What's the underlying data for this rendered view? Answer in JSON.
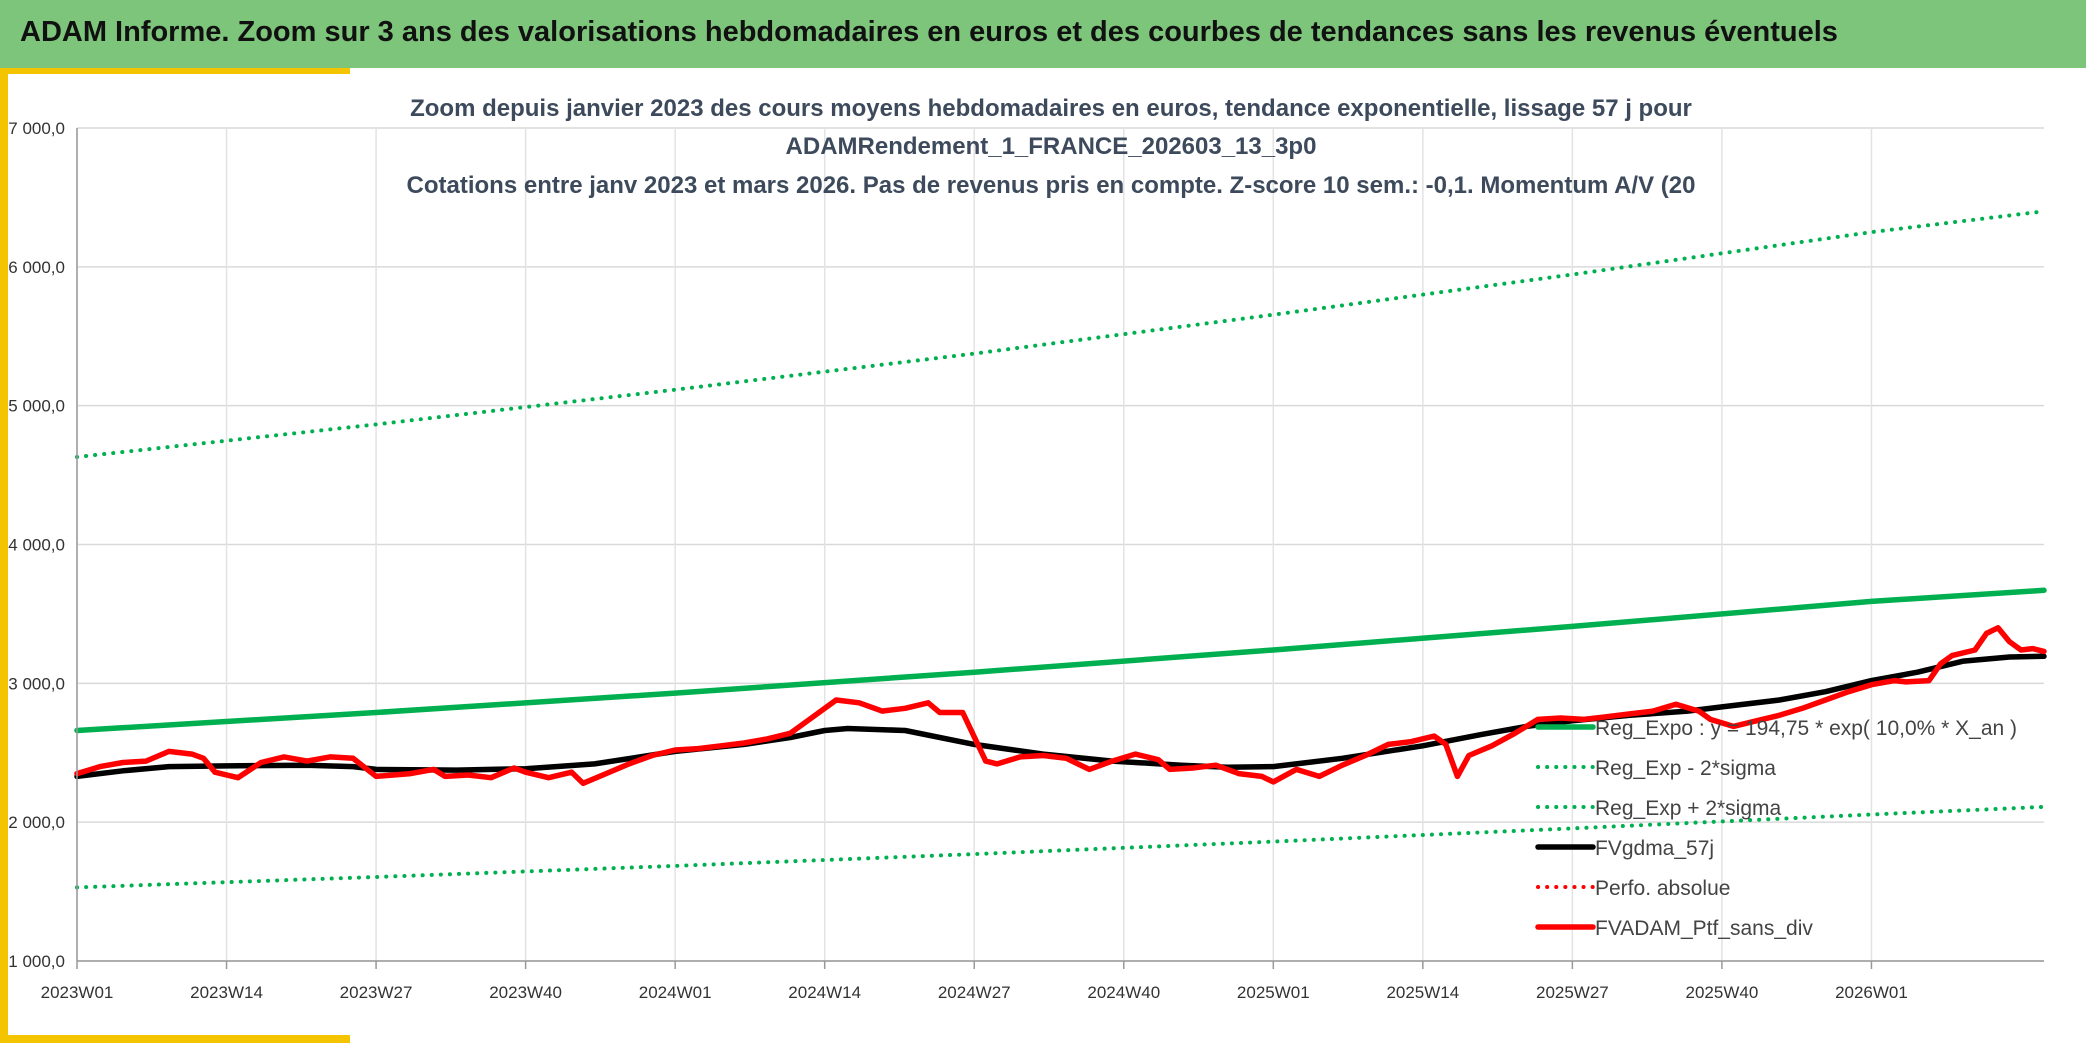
{
  "header": {
    "title": "ADAM Informe. Zoom sur 3 ans des valorisations hebdomadaires en euros et des courbes de tendances sans les revenus éventuels"
  },
  "colors": {
    "header_bg": "#7dc57a",
    "accent": "#f5c400",
    "trend": "#00b050",
    "smooth": "#000000",
    "price": "#ff0000"
  },
  "chart_data": {
    "type": "line",
    "title_lines": [
      "Zoom depuis janvier 2023 des cours moyens hebdomadaires en euros, tendance exponentielle, lissage 57 j pour",
      "ADAMRendement_1_FRANCE_202603_13_3p0",
      "Cotations entre janv 2023 et mars 2026. Pas de revenus pris en compte. Z-score 10 sem.: -0,1. Momentum A/V (20"
    ],
    "x_unit": "week index (0 = 2023W01)",
    "xlim": [
      0,
      171
    ],
    "ylim": [
      1000,
      7000
    ],
    "y_ticks": [
      {
        "value": 1000,
        "label": "1 000,0"
      },
      {
        "value": 2000,
        "label": "2 000,0"
      },
      {
        "value": 3000,
        "label": "3 000,0"
      },
      {
        "value": 4000,
        "label": "4 000,0"
      },
      {
        "value": 5000,
        "label": "5 000,0"
      },
      {
        "value": 6000,
        "label": "6 000,0"
      },
      {
        "value": 7000,
        "label": "7 000,0"
      }
    ],
    "x_ticks": [
      {
        "week": 0,
        "label": "2023W01"
      },
      {
        "week": 13,
        "label": "2023W14"
      },
      {
        "week": 26,
        "label": "2023W27"
      },
      {
        "week": 39,
        "label": "2023W40"
      },
      {
        "week": 52,
        "label": "2024W01"
      },
      {
        "week": 65,
        "label": "2024W14"
      },
      {
        "week": 78,
        "label": "2024W27"
      },
      {
        "week": 91,
        "label": "2024W40"
      },
      {
        "week": 104,
        "label": "2025W01"
      },
      {
        "week": 117,
        "label": "2025W14"
      },
      {
        "week": 130,
        "label": "2025W27"
      },
      {
        "week": 143,
        "label": "2025W40"
      },
      {
        "week": 156,
        "label": "2026W01"
      }
    ],
    "grid": true,
    "legend_position": "bottom-right",
    "series": [
      {
        "name": "Reg_Expo : y = 194,75 * exp( 10,0% *  X_an )",
        "style": "solid-thick",
        "color": "#00b050",
        "points": [
          [
            0,
            2660
          ],
          [
            26,
            2790
          ],
          [
            52,
            2930
          ],
          [
            78,
            3080
          ],
          [
            104,
            3240
          ],
          [
            130,
            3410
          ],
          [
            156,
            3590
          ],
          [
            171,
            3670
          ]
        ]
      },
      {
        "name": "Reg_Exp - 2*sigma",
        "style": "dotted",
        "color": "#00b050",
        "points": [
          [
            0,
            1530
          ],
          [
            26,
            1605
          ],
          [
            52,
            1685
          ],
          [
            78,
            1770
          ],
          [
            104,
            1860
          ],
          [
            130,
            1955
          ],
          [
            156,
            2055
          ],
          [
            171,
            2110
          ]
        ]
      },
      {
        "name": "Reg_Exp + 2*sigma",
        "style": "dotted",
        "color": "#00b050",
        "points": [
          [
            0,
            4630
          ],
          [
            26,
            4865
          ],
          [
            52,
            5115
          ],
          [
            78,
            5375
          ],
          [
            104,
            5655
          ],
          [
            130,
            5945
          ],
          [
            156,
            6250
          ],
          [
            171,
            6400
          ]
        ]
      },
      {
        "name": "FVgdma_57j",
        "style": "solid-thick",
        "color": "#000000",
        "points": [
          [
            0,
            2330
          ],
          [
            4,
            2370
          ],
          [
            8,
            2400
          ],
          [
            13,
            2405
          ],
          [
            20,
            2410
          ],
          [
            24,
            2400
          ],
          [
            26,
            2380
          ],
          [
            33,
            2375
          ],
          [
            39,
            2385
          ],
          [
            45,
            2420
          ],
          [
            52,
            2510
          ],
          [
            58,
            2560
          ],
          [
            62,
            2610
          ],
          [
            65,
            2660
          ],
          [
            67,
            2675
          ],
          [
            72,
            2660
          ],
          [
            78,
            2560
          ],
          [
            84,
            2490
          ],
          [
            90,
            2440
          ],
          [
            96,
            2410
          ],
          [
            100,
            2395
          ],
          [
            104,
            2400
          ],
          [
            110,
            2460
          ],
          [
            117,
            2550
          ],
          [
            122,
            2630
          ],
          [
            126,
            2690
          ],
          [
            130,
            2730
          ],
          [
            135,
            2770
          ],
          [
            140,
            2800
          ],
          [
            143,
            2830
          ],
          [
            148,
            2880
          ],
          [
            152,
            2940
          ],
          [
            156,
            3020
          ],
          [
            160,
            3080
          ],
          [
            164,
            3160
          ],
          [
            168,
            3190
          ],
          [
            171,
            3195
          ]
        ]
      },
      {
        "name": "Perfo. absolue",
        "style": "dotted",
        "color": "#ff0000",
        "points": []
      },
      {
        "name": "FVADAM_Ptf_sans_div",
        "style": "solid-thick",
        "color": "#ff0000",
        "points": [
          [
            0,
            2350
          ],
          [
            2,
            2400
          ],
          [
            4,
            2430
          ],
          [
            6,
            2440
          ],
          [
            8,
            2510
          ],
          [
            10,
            2490
          ],
          [
            11,
            2460
          ],
          [
            12,
            2360
          ],
          [
            14,
            2320
          ],
          [
            16,
            2430
          ],
          [
            18,
            2470
          ],
          [
            20,
            2440
          ],
          [
            22,
            2470
          ],
          [
            24,
            2460
          ],
          [
            26,
            2330
          ],
          [
            29,
            2350
          ],
          [
            31,
            2380
          ],
          [
            32,
            2330
          ],
          [
            34,
            2340
          ],
          [
            36,
            2320
          ],
          [
            38,
            2390
          ],
          [
            39,
            2360
          ],
          [
            41,
            2320
          ],
          [
            43,
            2360
          ],
          [
            44,
            2280
          ],
          [
            46,
            2350
          ],
          [
            48,
            2420
          ],
          [
            50,
            2480
          ],
          [
            52,
            2520
          ],
          [
            54,
            2530
          ],
          [
            56,
            2550
          ],
          [
            58,
            2570
          ],
          [
            60,
            2600
          ],
          [
            62,
            2640
          ],
          [
            64,
            2760
          ],
          [
            66,
            2880
          ],
          [
            68,
            2860
          ],
          [
            70,
            2800
          ],
          [
            72,
            2820
          ],
          [
            74,
            2860
          ],
          [
            75,
            2790
          ],
          [
            77,
            2790
          ],
          [
            79,
            2440
          ],
          [
            80,
            2420
          ],
          [
            82,
            2470
          ],
          [
            84,
            2480
          ],
          [
            86,
            2460
          ],
          [
            88,
            2380
          ],
          [
            90,
            2440
          ],
          [
            92,
            2490
          ],
          [
            94,
            2450
          ],
          [
            95,
            2380
          ],
          [
            97,
            2390
          ],
          [
            99,
            2410
          ],
          [
            101,
            2350
          ],
          [
            103,
            2330
          ],
          [
            104,
            2290
          ],
          [
            106,
            2380
          ],
          [
            108,
            2330
          ],
          [
            110,
            2410
          ],
          [
            112,
            2480
          ],
          [
            114,
            2560
          ],
          [
            116,
            2580
          ],
          [
            118,
            2620
          ],
          [
            119,
            2560
          ],
          [
            120,
            2330
          ],
          [
            121,
            2480
          ],
          [
            123,
            2550
          ],
          [
            125,
            2640
          ],
          [
            127,
            2740
          ],
          [
            129,
            2750
          ],
          [
            131,
            2740
          ],
          [
            133,
            2760
          ],
          [
            135,
            2780
          ],
          [
            137,
            2800
          ],
          [
            139,
            2850
          ],
          [
            141,
            2800
          ],
          [
            142,
            2740
          ],
          [
            144,
            2690
          ],
          [
            146,
            2730
          ],
          [
            148,
            2770
          ],
          [
            150,
            2820
          ],
          [
            152,
            2880
          ],
          [
            154,
            2940
          ],
          [
            156,
            2990
          ],
          [
            158,
            3020
          ],
          [
            159,
            3010
          ],
          [
            161,
            3020
          ],
          [
            162,
            3140
          ],
          [
            163,
            3200
          ],
          [
            165,
            3240
          ],
          [
            166,
            3360
          ],
          [
            167,
            3400
          ],
          [
            168,
            3300
          ],
          [
            169,
            3240
          ],
          [
            170,
            3250
          ],
          [
            171,
            3230
          ]
        ]
      }
    ]
  }
}
